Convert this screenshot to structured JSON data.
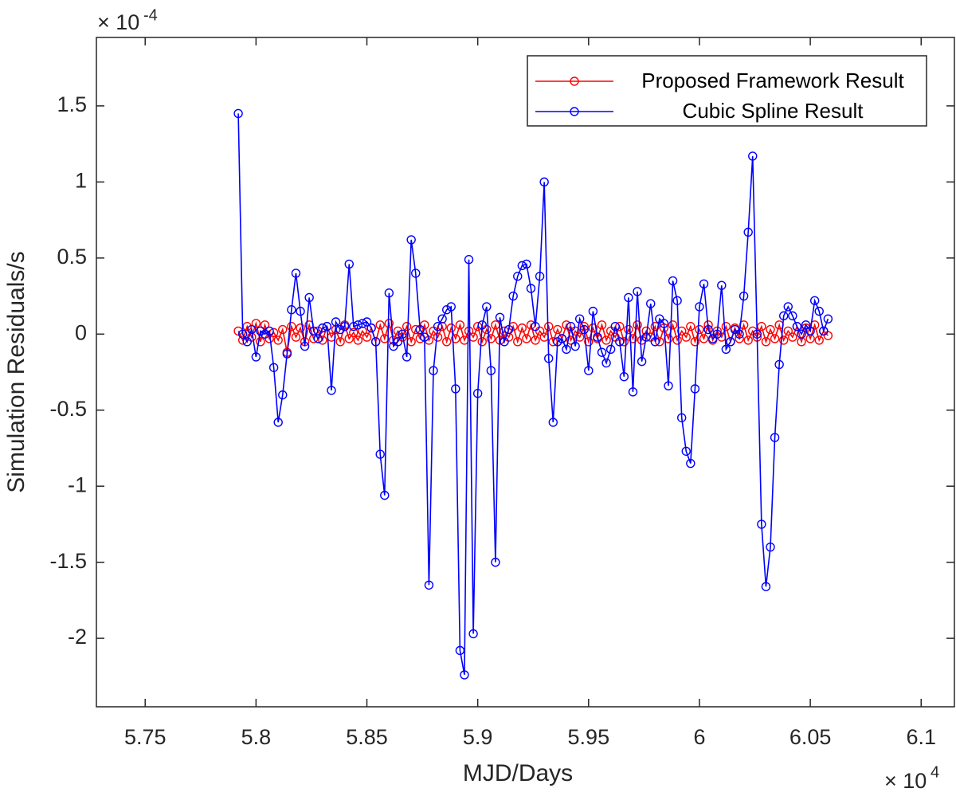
{
  "chart_data": {
    "type": "line",
    "xlabel": "MJD/Days",
    "ylabel": "Simulation Residuals/s",
    "x_multiplier": {
      "base": "× 10",
      "exponent": "4"
    },
    "y_multiplier": {
      "base": "× 10",
      "exponent": "-4"
    },
    "xlim": [
      5.728,
      6.115
    ],
    "ylim": [
      -2.45,
      1.95
    ],
    "xticks": [
      5.75,
      5.8,
      5.85,
      5.9,
      5.95,
      6,
      6.05,
      6.1
    ],
    "yticks": [
      -2,
      -1.5,
      -1,
      -0.5,
      0,
      0.5,
      1,
      1.5
    ],
    "grid": false,
    "legend": "upper right",
    "x": [
      5.792,
      5.794,
      5.796,
      5.798,
      5.8,
      5.802,
      5.804,
      5.806,
      5.808,
      5.81,
      5.812,
      5.814,
      5.816,
      5.818,
      5.82,
      5.822,
      5.824,
      5.826,
      5.828,
      5.83,
      5.832,
      5.834,
      5.836,
      5.838,
      5.84,
      5.842,
      5.844,
      5.846,
      5.848,
      5.85,
      5.852,
      5.854,
      5.856,
      5.858,
      5.86,
      5.862,
      5.864,
      5.866,
      5.868,
      5.87,
      5.872,
      5.874,
      5.876,
      5.878,
      5.88,
      5.882,
      5.884,
      5.886,
      5.888,
      5.89,
      5.892,
      5.894,
      5.896,
      5.898,
      5.9,
      5.902,
      5.904,
      5.906,
      5.908,
      5.91,
      5.912,
      5.914,
      5.916,
      5.918,
      5.92,
      5.922,
      5.924,
      5.926,
      5.928,
      5.93,
      5.932,
      5.934,
      5.936,
      5.938,
      5.94,
      5.942,
      5.944,
      5.946,
      5.948,
      5.95,
      5.952,
      5.954,
      5.956,
      5.958,
      5.96,
      5.962,
      5.964,
      5.966,
      5.968,
      5.97,
      5.972,
      5.974,
      5.976,
      5.978,
      5.98,
      5.982,
      5.984,
      5.986,
      5.988,
      5.99,
      5.992,
      5.994,
      5.996,
      5.998,
      6.0,
      6.002,
      6.004,
      6.006,
      6.008,
      6.01,
      6.012,
      6.014,
      6.016,
      6.018,
      6.02,
      6.022,
      6.024,
      6.026,
      6.028,
      6.03,
      6.032,
      6.034,
      6.036,
      6.038,
      6.04,
      6.042,
      6.044,
      6.046,
      6.048,
      6.05,
      6.052,
      6.054,
      6.056,
      6.058
    ],
    "series": [
      {
        "name": "Proposed Framework Result",
        "color": "#ff0000",
        "values": [
          0.02,
          -0.04,
          0.05,
          -0.02,
          0.07,
          -0.05,
          0.06,
          -0.03,
          0.01,
          -0.04,
          0.03,
          -0.12,
          0.05,
          -0.02,
          0.04,
          -0.05,
          0.06,
          -0.03,
          0.02,
          -0.04,
          0.05,
          -0.02,
          0.03,
          -0.05,
          0.06,
          -0.03,
          0.01,
          -0.04,
          0.02,
          -0.02,
          0.04,
          -0.05,
          0.06,
          -0.03,
          0.07,
          -0.04,
          0.02,
          -0.02,
          0.05,
          -0.05,
          0.03,
          -0.03,
          0.06,
          -0.04,
          0.02,
          -0.02,
          0.05,
          -0.05,
          0.04,
          -0.03,
          0.06,
          -0.04,
          0.02,
          -0.02,
          0.05,
          -0.05,
          0.03,
          -0.03,
          0.06,
          -0.04,
          0.02,
          -0.02,
          0.05,
          -0.05,
          0.04,
          -0.03,
          0.06,
          -0.04,
          0.02,
          -0.02,
          0.05,
          -0.05,
          0.03,
          -0.03,
          0.06,
          -0.04,
          0.02,
          -0.02,
          0.05,
          -0.05,
          0.04,
          -0.03,
          0.06,
          -0.04,
          0.02,
          -0.02,
          0.05,
          -0.05,
          0.03,
          -0.03,
          0.06,
          -0.04,
          0.02,
          -0.02,
          0.05,
          -0.05,
          0.04,
          -0.03,
          0.06,
          -0.04,
          0.02,
          -0.02,
          0.05,
          -0.05,
          0.03,
          -0.03,
          0.06,
          -0.04,
          0.02,
          -0.02,
          0.05,
          -0.05,
          0.04,
          -0.03,
          0.06,
          -0.04,
          0.02,
          -0.02,
          0.05,
          -0.05,
          0.03,
          -0.03,
          0.06,
          -0.04,
          0.02,
          -0.02,
          0.05,
          -0.05,
          0.04,
          -0.03,
          0.06,
          -0.04,
          0.02,
          -0.01
        ]
      },
      {
        "name": "Cubic Spline Result",
        "color": "#0000ff",
        "values": [
          1.45,
          0,
          -0.05,
          0.03,
          -0.15,
          0.02,
          0,
          0.02,
          -0.22,
          -0.58,
          -0.4,
          -0.13,
          0.16,
          0.4,
          0.15,
          -0.08,
          0.24,
          0.02,
          -0.03,
          0.04,
          0.05,
          -0.37,
          0.08,
          0.03,
          0.05,
          0.46,
          0.05,
          0.06,
          0.07,
          0.08,
          0.04,
          -0.05,
          -0.79,
          -1.06,
          0.27,
          -0.08,
          -0.05,
          0,
          -0.15,
          0.62,
          0.4,
          0.03,
          -0.02,
          -1.65,
          -0.24,
          0.05,
          0.1,
          0.16,
          0.18,
          -0.36,
          -2.08,
          -2.24,
          0.49,
          -1.97,
          -0.39,
          0.06,
          0.18,
          -0.24,
          -1.5,
          0.11,
          -0.05,
          0.03,
          0.25,
          0.38,
          0.45,
          0.46,
          0.3,
          0.05,
          0.38,
          1.0,
          -0.16,
          -0.58,
          -0.05,
          -0.03,
          -0.1,
          0.05,
          -0.08,
          0.1,
          0.03,
          -0.24,
          0.15,
          -0.02,
          -0.12,
          -0.19,
          -0.1,
          0.05,
          -0.05,
          -0.28,
          0.24,
          -0.38,
          0.28,
          -0.18,
          -0.02,
          0.2,
          -0.05,
          0.1,
          0.07,
          -0.34,
          0.35,
          0.22,
          -0.55,
          -0.77,
          -0.85,
          -0.36,
          0.18,
          0.33,
          0.03,
          -0.03,
          0,
          0.32,
          -0.1,
          -0.05,
          0.03,
          0,
          0.25,
          0.67,
          1.17,
          0,
          -1.25,
          -1.66,
          -1.4,
          -0.68,
          -0.2,
          0.12,
          0.18,
          0.12,
          0.05,
          0,
          0.06,
          0.02,
          0.22,
          0.15,
          0.02,
          0.1
        ]
      }
    ]
  }
}
